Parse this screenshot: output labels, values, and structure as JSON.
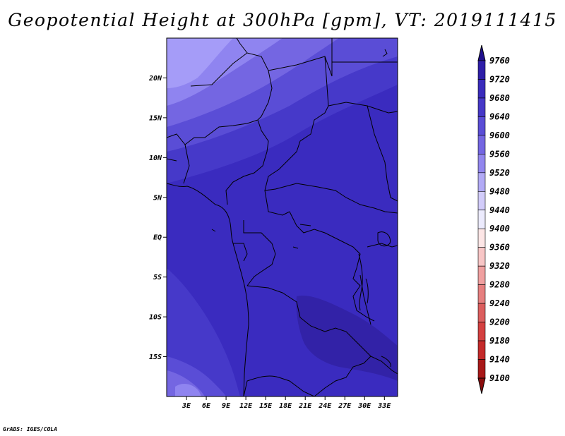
{
  "title": "Geopotential Height at 300hPa [gpm], VT: 2019111415",
  "credit": "GrADS: IGES/COLA",
  "map": {
    "lon_labels": [
      "3E",
      "6E",
      "9E",
      "12E",
      "15E",
      "18E",
      "21E",
      "24E",
      "27E",
      "30E",
      "33E"
    ],
    "lon_values": [
      3,
      6,
      9,
      12,
      15,
      18,
      21,
      24,
      27,
      30,
      33
    ],
    "lat_labels": [
      "20N",
      "15N",
      "10N",
      "5N",
      "EQ",
      "5S",
      "10S",
      "15S"
    ],
    "lat_values": [
      20,
      15,
      10,
      5,
      0,
      -5,
      -10,
      -15
    ],
    "lon_range": [
      0,
      35
    ],
    "lat_range": [
      -20,
      25
    ],
    "fill_levels": [
      {
        "label": "9560-9600",
        "color": "#7a6ee8"
      },
      {
        "label": "9600-9640",
        "color": "#5a4fd8"
      },
      {
        "label": "9640-9680",
        "color": "#4436c8"
      },
      {
        "label": "9680-9720",
        "color": "#3424b8"
      },
      {
        "label": "9520-9560",
        "color": "#8f84f2"
      },
      {
        "label": "9480-9520",
        "color": "#a59cf8"
      }
    ]
  },
  "colorbar": {
    "levels": [
      "9760",
      "9720",
      "9680",
      "9640",
      "9600",
      "9560",
      "9520",
      "9480",
      "9440",
      "9400",
      "9360",
      "9320",
      "9280",
      "9240",
      "9200",
      "9180",
      "9140",
      "9100"
    ],
    "colors": [
      "#1f0f8c",
      "#2e1ea8",
      "#3a2bbc",
      "#4638c8",
      "#5a4dd6",
      "#7466e2",
      "#9286ee",
      "#b2aaf6",
      "#d2ccfa",
      "#ecebfd",
      "#fde6e6",
      "#f8c6c6",
      "#f0a0a0",
      "#e67f7f",
      "#dc5e5e",
      "#d44040",
      "#c42a2a",
      "#a81818",
      "#8a0c0c"
    ]
  }
}
